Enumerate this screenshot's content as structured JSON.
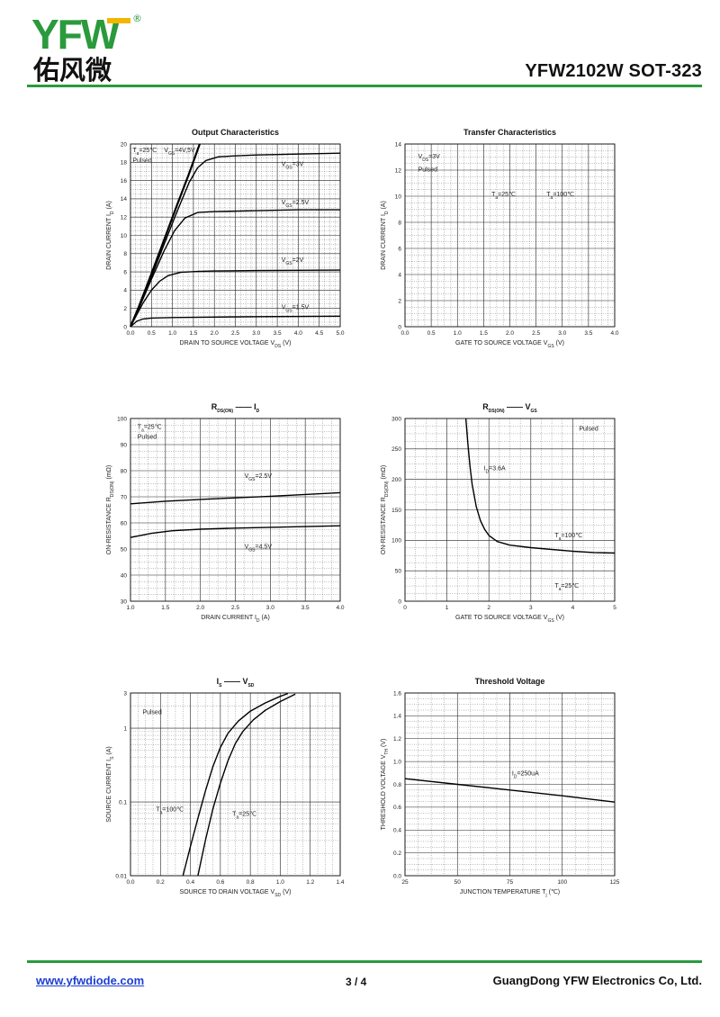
{
  "header": {
    "logo_letters": "YFW",
    "logo_registered": "®",
    "logo_chinese": "佑风微",
    "part_number": "YFW2102W   SOT-323"
  },
  "footer": {
    "url": "www.yfwdiode.com",
    "page": "3 / 4",
    "company": "GuangDong YFW Electronics Co, Ltd."
  },
  "colors": {
    "accent": "#2a9a3c",
    "logo_yellow": "#f2b600",
    "link": "#1d3fd1"
  },
  "chart_data": [
    {
      "id": "output",
      "type": "line",
      "title": "Output Characteristics",
      "xlabel": "DRAIN TO SOURCE VOLTAGE   V",
      "xlabel_sub": "DS",
      "xlabel_unit": "(V)",
      "ylabel": "DRAIN CURRENT   I",
      "ylabel_sub": "D",
      "ylabel_unit": "(A)",
      "xlim": [
        0,
        5
      ],
      "ylim": [
        0,
        20
      ],
      "xticks": [
        0,
        0.5,
        1,
        1.5,
        2,
        2.5,
        3,
        3.5,
        4,
        4.5,
        5
      ],
      "xtick_labels": [
        "0.0",
        "0.5",
        "1.0",
        "1.5",
        "2.0",
        "2.5",
        "3.0",
        "3.5",
        "4.0",
        "4.5",
        "5.0"
      ],
      "yticks": [
        0,
        2,
        4,
        6,
        8,
        10,
        12,
        14,
        16,
        18,
        20
      ],
      "ytick_labels": [
        "0",
        "2",
        "4",
        "6",
        "8",
        "10",
        "12",
        "14",
        "16",
        "18",
        "20"
      ],
      "annotations": [
        {
          "x": 0.05,
          "y": 19.1,
          "parts": [
            "T",
            "a",
            "=25℃ "
          ]
        },
        {
          "x": 0.05,
          "y": 18.0,
          "parts": [
            "Pulsed"
          ]
        },
        {
          "x": 0.8,
          "y": 19.1,
          "parts": [
            "V",
            "GS",
            "=4V,5V"
          ]
        },
        {
          "x": 3.6,
          "y": 17.6,
          "parts": [
            "V",
            "GS",
            "=3V"
          ]
        },
        {
          "x": 3.6,
          "y": 13.4,
          "parts": [
            "V",
            "GS",
            "=2.5V"
          ]
        },
        {
          "x": 3.6,
          "y": 7.1,
          "parts": [
            "V",
            "GS",
            "=2V"
          ]
        },
        {
          "x": 3.6,
          "y": 1.9,
          "parts": [
            "V",
            "GS",
            "=1.5V"
          ]
        }
      ],
      "series": [
        {
          "values": [
            [
              0,
              0
            ],
            [
              0.2,
              2.2
            ],
            [
              0.5,
              5.8
            ],
            [
              0.8,
              9.5
            ],
            [
              1.1,
              13.2
            ],
            [
              1.4,
              16.8
            ],
            [
              1.65,
              20
            ]
          ],
          "width": 2.2
        },
        {
          "values": [
            [
              0,
              0
            ],
            [
              0.2,
              2.1
            ],
            [
              0.5,
              5.5
            ],
            [
              0.8,
              9.0
            ],
            [
              1.1,
              12.5
            ],
            [
              1.4,
              15.8
            ],
            [
              1.6,
              17.4
            ],
            [
              1.8,
              18.2
            ],
            [
              2.1,
              18.6
            ],
            [
              2.5,
              18.7
            ],
            [
              3,
              18.8
            ],
            [
              4,
              18.9
            ],
            [
              5,
              19.0
            ]
          ]
        },
        {
          "values": [
            [
              0,
              0
            ],
            [
              0.2,
              2.0
            ],
            [
              0.5,
              5.2
            ],
            [
              0.8,
              8.3
            ],
            [
              1.05,
              10.5
            ],
            [
              1.3,
              11.9
            ],
            [
              1.6,
              12.5
            ],
            [
              2,
              12.6
            ],
            [
              3,
              12.7
            ],
            [
              4,
              12.8
            ],
            [
              5,
              12.8
            ]
          ]
        },
        {
          "values": [
            [
              0,
              0
            ],
            [
              0.1,
              0.9
            ],
            [
              0.3,
              2.6
            ],
            [
              0.5,
              4.0
            ],
            [
              0.7,
              5.0
            ],
            [
              0.9,
              5.6
            ],
            [
              1.2,
              5.95
            ],
            [
              1.6,
              6.05
            ],
            [
              2,
              6.1
            ],
            [
              3,
              6.15
            ],
            [
              5,
              6.2
            ]
          ]
        },
        {
          "values": [
            [
              0,
              0
            ],
            [
              0.05,
              0.2
            ],
            [
              0.15,
              0.6
            ],
            [
              0.3,
              0.85
            ],
            [
              0.5,
              0.95
            ],
            [
              1,
              1.0
            ],
            [
              3,
              1.1
            ],
            [
              5,
              1.15
            ]
          ]
        }
      ]
    },
    {
      "id": "transfer",
      "type": "line",
      "title": "Transfer Characteristics",
      "xlabel": "GATE TO SOURCE VOLTAGE   V",
      "xlabel_sub": "GS",
      "xlabel_unit": "(V)",
      "ylabel": "DRAIN CURRENT   I",
      "ylabel_sub": "D",
      "ylabel_unit": "(A)",
      "xlim": [
        0,
        4
      ],
      "ylim": [
        0,
        14
      ],
      "xticks": [
        0,
        0.5,
        1,
        1.5,
        2,
        2.5,
        3,
        3.5,
        4
      ],
      "xtick_labels": [
        "0.0",
        "0.5",
        "1.0",
        "1.5",
        "2.0",
        "2.5",
        "3.0",
        "3.5",
        "4.0"
      ],
      "yticks": [
        0,
        2,
        4,
        6,
        8,
        10,
        12,
        14
      ],
      "ytick_labels": [
        "0",
        "2",
        "4",
        "6",
        "8",
        "10",
        "12",
        "14"
      ],
      "annotations": [
        {
          "x": 0.25,
          "y": 12.9,
          "parts": [
            "V",
            "DS",
            "=3V"
          ]
        },
        {
          "x": 0.25,
          "y": 11.9,
          "parts": [
            "Pulsed"
          ]
        },
        {
          "x": 1.65,
          "y": 10.0,
          "parts": [
            "T",
            "a",
            "=25℃"
          ]
        },
        {
          "x": 2.7,
          "y": 10.0,
          "parts": [
            "T",
            "a",
            "=100℃"
          ]
        }
      ],
      "series": []
    },
    {
      "id": "rds-id",
      "type": "line",
      "title_parts": [
        "R",
        "DS(ON)",
        " —— I",
        "D"
      ],
      "xlabel": "DRAIN CURRENT   I",
      "xlabel_sub": "D",
      "xlabel_unit": "(A)",
      "ylabel": "ON-RESISTANCE   R",
      "ylabel_sub": "DS(ON)",
      "ylabel_unit": "(mΩ)",
      "xlim": [
        1,
        4
      ],
      "ylim": [
        30,
        100
      ],
      "xticks": [
        1,
        1.5,
        2,
        2.5,
        3,
        3.5,
        4
      ],
      "xtick_labels": [
        "1.0",
        "1.5",
        "2.0",
        "2.5",
        "3.0",
        "3.5",
        "4.0"
      ],
      "yticks": [
        30,
        40,
        50,
        60,
        70,
        80,
        90,
        100
      ],
      "ytick_labels": [
        "30",
        "40",
        "50",
        "60",
        "70",
        "80",
        "90",
        "100"
      ],
      "annotations": [
        {
          "x": 1.1,
          "y": 96.0,
          "parts": [
            "T",
            "a",
            "=25℃"
          ]
        },
        {
          "x": 1.1,
          "y": 92.2,
          "parts": [
            "Pulsed"
          ]
        },
        {
          "x": 2.63,
          "y": 77.3,
          "parts": [
            "V",
            "GS",
            "=2.5V"
          ]
        },
        {
          "x": 2.63,
          "y": 50.2,
          "parts": [
            "V",
            "GS",
            "=4.5V"
          ]
        }
      ],
      "series": [
        {
          "values": [
            [
              1,
              67.3
            ],
            [
              1.5,
              68.3
            ],
            [
              2,
              69.0
            ],
            [
              2.5,
              69.6
            ],
            [
              3,
              70.2
            ],
            [
              3.5,
              70.9
            ],
            [
              4,
              71.6
            ]
          ]
        },
        {
          "values": [
            [
              1,
              54.4
            ],
            [
              1.3,
              56.0
            ],
            [
              1.6,
              57.0
            ],
            [
              2,
              57.6
            ],
            [
              2.5,
              58.0
            ],
            [
              3,
              58.3
            ],
            [
              3.5,
              58.6
            ],
            [
              4,
              58.9
            ]
          ]
        }
      ]
    },
    {
      "id": "rds-vgs",
      "type": "line",
      "title_parts": [
        "R",
        "DS(ON)",
        " —— V",
        "GS"
      ],
      "xlabel": "GATE TO SOURCE VOLTAGE   V",
      "xlabel_sub": "GS",
      "xlabel_unit": "(V)",
      "ylabel": "ON-RESISTANCE   R",
      "ylabel_sub": "DS(ON)",
      "ylabel_unit": "(mΩ)",
      "xlim": [
        0,
        5
      ],
      "ylim": [
        0,
        300
      ],
      "xticks": [
        0,
        1,
        2,
        3,
        4,
        5
      ],
      "xtick_labels": [
        "0",
        "1",
        "2",
        "3",
        "4",
        "5"
      ],
      "yticks": [
        0,
        50,
        100,
        150,
        200,
        250,
        300
      ],
      "ytick_labels": [
        "0",
        "50",
        "100",
        "150",
        "200",
        "250",
        "300"
      ],
      "annotations": [
        {
          "x": 4.15,
          "y": 280,
          "parts": [
            "Pulsed"
          ]
        },
        {
          "x": 1.88,
          "y": 215,
          "parts": [
            "I",
            "D",
            "=3.6A"
          ]
        },
        {
          "x": 3.57,
          "y": 105,
          "parts": [
            "T",
            "a",
            "=100℃"
          ]
        },
        {
          "x": 3.57,
          "y": 22,
          "parts": [
            "T",
            "a",
            "=25℃"
          ]
        }
      ],
      "series": [
        {
          "values": [
            [
              1.45,
              300
            ],
            [
              1.5,
              258
            ],
            [
              1.55,
              222
            ],
            [
              1.6,
              192
            ],
            [
              1.7,
              155
            ],
            [
              1.8,
              132
            ],
            [
              1.9,
              118
            ],
            [
              2.0,
              108
            ],
            [
              2.2,
              98
            ],
            [
              2.5,
              92
            ],
            [
              3,
              88
            ],
            [
              3.5,
              85
            ],
            [
              4,
              82
            ],
            [
              4.5,
              80
            ],
            [
              5,
              79
            ]
          ]
        }
      ]
    },
    {
      "id": "is-vsd",
      "type": "line",
      "title_parts": [
        "I",
        "S",
        " —— V",
        "SD"
      ],
      "xlabel": "SOURCE TO DRAIN VOLTAGE   V",
      "xlabel_sub": "SD",
      "xlabel_unit": "(V)",
      "ylabel": "SOURCE CURRENT   I",
      "ylabel_sub": "S",
      "ylabel_unit": "(A)",
      "yscale": "log",
      "xlim": [
        0,
        1.4
      ],
      "ylim": [
        0.01,
        3
      ],
      "xticks": [
        0,
        0.2,
        0.4,
        0.6,
        0.8,
        1.0,
        1.2,
        1.4
      ],
      "xtick_labels": [
        "0.0",
        "0.2",
        "0.4",
        "0.6",
        "0.8",
        "1.0",
        "1.2",
        "1.4"
      ],
      "yticks": [
        0.01,
        0.1,
        1,
        3
      ],
      "ytick_labels": [
        "0.01",
        "0.1",
        "1",
        "3"
      ],
      "annotations": [
        {
          "x": 0.08,
          "y": 1.55,
          "parts": [
            "Pulsed"
          ]
        },
        {
          "x": 0.17,
          "y": 0.075,
          "parts": [
            "T",
            "a",
            "=100℃"
          ]
        },
        {
          "x": 0.68,
          "y": 0.065,
          "parts": [
            "T",
            "a",
            "=25℃"
          ]
        }
      ],
      "series": [
        {
          "values": [
            [
              0.35,
              0.01
            ],
            [
              0.4,
              0.025
            ],
            [
              0.45,
              0.06
            ],
            [
              0.5,
              0.14
            ],
            [
              0.55,
              0.3
            ],
            [
              0.6,
              0.55
            ],
            [
              0.65,
              0.85
            ],
            [
              0.72,
              1.25
            ],
            [
              0.8,
              1.7
            ],
            [
              0.9,
              2.2
            ],
            [
              1.0,
              2.7
            ],
            [
              1.05,
              2.95
            ]
          ]
        },
        {
          "values": [
            [
              0.45,
              0.01
            ],
            [
              0.5,
              0.03
            ],
            [
              0.55,
              0.08
            ],
            [
              0.6,
              0.18
            ],
            [
              0.65,
              0.36
            ],
            [
              0.7,
              0.62
            ],
            [
              0.75,
              0.9
            ],
            [
              0.82,
              1.3
            ],
            [
              0.9,
              1.75
            ],
            [
              1.0,
              2.3
            ],
            [
              1.1,
              2.9
            ]
          ]
        }
      ]
    },
    {
      "id": "threshold",
      "type": "line",
      "title": "Threshold Voltage",
      "xlabel": "JUNCTION TEMPERATURE   T",
      "xlabel_sub": "j",
      "xlabel_unit": "(℃)",
      "ylabel": "THRESHOLD VOLTAGE   V",
      "ylabel_sub": "TH",
      "ylabel_unit": "(V)",
      "xlim": [
        25,
        125
      ],
      "ylim": [
        0,
        1.6
      ],
      "xticks": [
        25,
        50,
        75,
        100,
        125
      ],
      "xtick_labels": [
        "25",
        "50",
        "75",
        "100",
        "125"
      ],
      "yticks": [
        0,
        0.2,
        0.4,
        0.6,
        0.8,
        1.0,
        1.2,
        1.4,
        1.6
      ],
      "ytick_labels": [
        "0.0",
        "0.2",
        "0.4",
        "0.6",
        "0.8",
        "1.0",
        "1.2",
        "1.4",
        "1.6"
      ],
      "annotations": [
        {
          "x": 76,
          "y": 0.88,
          "parts": [
            "I",
            "D",
            "=250uA"
          ]
        }
      ],
      "series": [
        {
          "values": [
            [
              25,
              0.85
            ],
            [
              50,
              0.8
            ],
            [
              75,
              0.75
            ],
            [
              100,
              0.7
            ],
            [
              125,
              0.645
            ]
          ]
        }
      ]
    }
  ]
}
